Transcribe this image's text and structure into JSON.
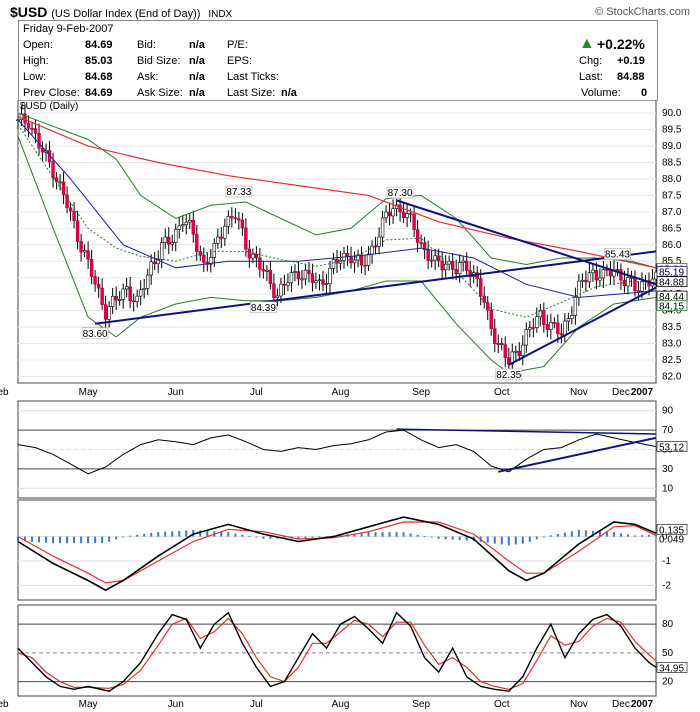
{
  "header": {
    "symbol": "$USD",
    "name": "(US Dollar Index (End of Day))",
    "exchange": "INDX",
    "watermark": "© StockCharts.com",
    "date": "Friday   9-Feb-2007",
    "open_label": "Open:",
    "open": "84.69",
    "high_label": "High:",
    "high": "85.03",
    "low_label": "Low:",
    "low": "84.68",
    "prev_label": "Prev Close:",
    "prev": "84.69",
    "bid_label": "Bid:",
    "bid": "n/a",
    "bidsize_label": "Bid Size:",
    "bidsize": "n/a",
    "ask_label": "Ask:",
    "ask": "n/a",
    "asksize_label": "Ask Size:",
    "asksize": "n/a",
    "pe_label": "P/E:",
    "eps_label": "EPS:",
    "lastticks_label": "Last Ticks:",
    "lastsize_label": "Last Size:",
    "lastsize": "n/a",
    "change_arrow": "▲",
    "change_pct": "+0.22%",
    "chg_label": "Chg:",
    "chg": "+0.19",
    "last_label": "Last:",
    "last": "84.88",
    "volume_label": "Volume:",
    "volume": "0"
  },
  "chart_data": [
    {
      "type": "candlestick",
      "title": "$USD (Daily)",
      "ylim": [
        81.8,
        90.4
      ],
      "y_ticks": [
        "90.0",
        "89.5",
        "89.0",
        "88.5",
        "88.0",
        "87.5",
        "87.0",
        "86.5",
        "86.0",
        "85.5",
        "85.0",
        "84.5",
        "84.0",
        "83.5",
        "83.0",
        "82.5",
        "82.0"
      ],
      "x_labels": [
        "May",
        "Jun",
        "Jul",
        "Aug",
        "Sep",
        "Oct",
        "Nov",
        "Dec",
        "2007",
        "Feb"
      ],
      "close_path_points": [
        [
          0,
          89.7
        ],
        [
          3,
          89.8
        ],
        [
          6,
          89.0
        ],
        [
          10,
          88.3
        ],
        [
          14,
          87.2
        ],
        [
          18,
          86.0
        ],
        [
          22,
          84.8
        ],
        [
          25,
          84.0
        ],
        [
          28,
          84.3
        ],
        [
          31,
          84.7
        ],
        [
          34,
          84.2
        ],
        [
          36,
          84.8
        ],
        [
          38,
          85.4
        ],
        [
          41,
          85.9
        ],
        [
          44,
          86.2
        ],
        [
          47,
          86.8
        ],
        [
          50,
          86.3
        ],
        [
          53,
          85.4
        ],
        [
          56,
          85.8
        ],
        [
          59,
          86.7
        ],
        [
          62,
          86.9
        ],
        [
          65,
          86.0
        ],
        [
          68,
          85.5
        ],
        [
          71,
          85.0
        ],
        [
          74,
          84.5
        ],
        [
          77,
          84.9
        ],
        [
          80,
          85.2
        ],
        [
          83,
          85.0
        ],
        [
          86,
          84.8
        ],
        [
          89,
          85.2
        ],
        [
          92,
          85.6
        ],
        [
          95,
          85.7
        ],
        [
          98,
          85.3
        ],
        [
          101,
          85.9
        ],
        [
          104,
          86.6
        ],
        [
          107,
          87.2
        ],
        [
          110,
          87.0
        ],
        [
          113,
          86.5
        ],
        [
          116,
          85.8
        ],
        [
          119,
          85.4
        ],
        [
          122,
          85.5
        ],
        [
          125,
          85.2
        ],
        [
          128,
          85.4
        ],
        [
          131,
          84.9
        ],
        [
          134,
          83.8
        ],
        [
          137,
          83.0
        ],
        [
          140,
          82.4
        ],
        [
          143,
          82.9
        ],
        [
          146,
          83.4
        ],
        [
          149,
          83.9
        ],
        [
          152,
          83.5
        ],
        [
          155,
          83.3
        ],
        [
          158,
          84.1
        ],
        [
          161,
          84.9
        ],
        [
          164,
          85.2
        ],
        [
          167,
          85.0
        ],
        [
          170,
          85.3
        ],
        [
          173,
          84.9
        ],
        [
          176,
          84.7
        ],
        [
          179,
          84.9
        ],
        [
          182,
          84.9
        ]
      ],
      "price_labels": [
        {
          "text": "87.33",
          "index": 63,
          "value": 87.33
        },
        {
          "text": "87.30",
          "index": 109,
          "value": 87.3
        },
        {
          "text": "83.60",
          "index": 22,
          "value": 83.6
        },
        {
          "text": "84.39",
          "index": 70,
          "value": 84.39
        },
        {
          "text": "82.35",
          "index": 140,
          "value": 82.35
        },
        {
          "text": "85.43",
          "index": 171,
          "value": 85.43
        }
      ],
      "right_labels": [
        "85.28",
        "85.19",
        "84.88",
        "84.44",
        "84.15"
      ],
      "ma_200": [
        [
          0,
          89.9
        ],
        [
          20,
          89.0
        ],
        [
          40,
          88.5
        ],
        [
          60,
          88.1
        ],
        [
          80,
          87.8
        ],
        [
          100,
          87.5
        ],
        [
          120,
          86.7
        ],
        [
          140,
          86.2
        ],
        [
          160,
          85.8
        ],
        [
          182,
          85.3
        ]
      ],
      "ma_50": [
        [
          0,
          89.8
        ],
        [
          15,
          88.0
        ],
        [
          30,
          86.0
        ],
        [
          45,
          85.3
        ],
        [
          60,
          85.5
        ],
        [
          80,
          85.5
        ],
        [
          100,
          85.7
        ],
        [
          115,
          85.9
        ],
        [
          130,
          85.6
        ],
        [
          145,
          84.8
        ],
        [
          160,
          84.4
        ],
        [
          182,
          84.6
        ]
      ],
      "bb_upper": [
        [
          0,
          90.0
        ],
        [
          10,
          89.6
        ],
        [
          20,
          89.2
        ],
        [
          28,
          88.6
        ],
        [
          35,
          87.5
        ],
        [
          45,
          86.8
        ],
        [
          55,
          87.2
        ],
        [
          65,
          87.3
        ],
        [
          75,
          86.8
        ],
        [
          85,
          86.3
        ],
        [
          95,
          86.5
        ],
        [
          105,
          87.4
        ],
        [
          115,
          87.5
        ],
        [
          125,
          86.8
        ],
        [
          135,
          85.6
        ],
        [
          145,
          85.4
        ],
        [
          155,
          85.6
        ],
        [
          165,
          85.6
        ],
        [
          175,
          85.5
        ],
        [
          182,
          85.3
        ]
      ],
      "bb_lower": [
        [
          0,
          89.3
        ],
        [
          10,
          86.5
        ],
        [
          20,
          83.8
        ],
        [
          28,
          83.2
        ],
        [
          35,
          83.8
        ],
        [
          45,
          84.2
        ],
        [
          55,
          84.4
        ],
        [
          65,
          84.3
        ],
        [
          75,
          84.3
        ],
        [
          85,
          84.4
        ],
        [
          95,
          84.6
        ],
        [
          105,
          84.9
        ],
        [
          115,
          84.9
        ],
        [
          125,
          83.6
        ],
        [
          135,
          82.5
        ],
        [
          140,
          82.1
        ],
        [
          150,
          82.3
        ],
        [
          160,
          83.5
        ],
        [
          170,
          84.2
        ],
        [
          182,
          84.4
        ]
      ],
      "trendlines": [
        {
          "from": [
            22,
            83.6
          ],
          "to": [
            182,
            85.8
          ]
        },
        {
          "from": [
            108,
            87.35
          ],
          "to": [
            182,
            84.8
          ]
        },
        {
          "from": [
            140,
            82.35
          ],
          "to": [
            182,
            84.7
          ]
        }
      ]
    },
    {
      "type": "line",
      "indicator": "RSI",
      "ylim": [
        0,
        100
      ],
      "y_ticks": [
        "90",
        "70",
        "50",
        "30",
        "10"
      ],
      "right_label": "53.12",
      "values": [
        [
          0,
          55
        ],
        [
          5,
          52
        ],
        [
          10,
          45
        ],
        [
          15,
          35
        ],
        [
          20,
          25
        ],
        [
          25,
          32
        ],
        [
          30,
          45
        ],
        [
          35,
          55
        ],
        [
          40,
          60
        ],
        [
          45,
          58
        ],
        [
          50,
          55
        ],
        [
          55,
          62
        ],
        [
          60,
          65
        ],
        [
          65,
          58
        ],
        [
          70,
          50
        ],
        [
          75,
          48
        ],
        [
          80,
          52
        ],
        [
          85,
          50
        ],
        [
          90,
          54
        ],
        [
          95,
          56
        ],
        [
          100,
          60
        ],
        [
          105,
          68
        ],
        [
          110,
          70
        ],
        [
          115,
          60
        ],
        [
          120,
          52
        ],
        [
          125,
          55
        ],
        [
          130,
          48
        ],
        [
          135,
          33
        ],
        [
          140,
          27
        ],
        [
          145,
          40
        ],
        [
          150,
          50
        ],
        [
          155,
          52
        ],
        [
          160,
          60
        ],
        [
          165,
          66
        ],
        [
          170,
          62
        ],
        [
          175,
          58
        ],
        [
          182,
          53
        ]
      ]
    },
    {
      "type": "line",
      "indicator": "MACD",
      "ylim": [
        -2.6,
        1.5
      ],
      "y_ticks": [
        "0",
        "-1",
        "-2"
      ],
      "right_labels": [
        "0.135",
        "0.049"
      ],
      "macd": [
        [
          0,
          -0.2
        ],
        [
          10,
          -1.1
        ],
        [
          20,
          -1.8
        ],
        [
          25,
          -2.2
        ],
        [
          30,
          -1.8
        ],
        [
          40,
          -0.8
        ],
        [
          50,
          0.1
        ],
        [
          60,
          0.5
        ],
        [
          70,
          0.1
        ],
        [
          80,
          -0.2
        ],
        [
          90,
          0.0
        ],
        [
          100,
          0.4
        ],
        [
          110,
          0.8
        ],
        [
          120,
          0.5
        ],
        [
          130,
          -0.1
        ],
        [
          140,
          -1.4
        ],
        [
          145,
          -1.8
        ],
        [
          150,
          -1.5
        ],
        [
          160,
          -0.3
        ],
        [
          170,
          0.6
        ],
        [
          176,
          0.5
        ],
        [
          182,
          0.14
        ]
      ],
      "signal": [
        [
          0,
          0.0
        ],
        [
          10,
          -0.8
        ],
        [
          20,
          -1.5
        ],
        [
          25,
          -1.9
        ],
        [
          30,
          -1.8
        ],
        [
          40,
          -1.0
        ],
        [
          50,
          -0.2
        ],
        [
          60,
          0.3
        ],
        [
          70,
          0.2
        ],
        [
          80,
          -0.1
        ],
        [
          90,
          -0.05
        ],
        [
          100,
          0.2
        ],
        [
          110,
          0.6
        ],
        [
          120,
          0.6
        ],
        [
          130,
          0.1
        ],
        [
          140,
          -1.0
        ],
        [
          145,
          -1.5
        ],
        [
          150,
          -1.5
        ],
        [
          160,
          -0.6
        ],
        [
          170,
          0.4
        ],
        [
          176,
          0.45
        ],
        [
          182,
          0.05
        ]
      ]
    },
    {
      "type": "line",
      "indicator": "Stochastics",
      "ylim": [
        5,
        100
      ],
      "y_ticks": [
        "80",
        "50",
        "20"
      ],
      "right_label": "34.95",
      "fast": [
        [
          0,
          55
        ],
        [
          4,
          40
        ],
        [
          8,
          25
        ],
        [
          12,
          15
        ],
        [
          16,
          12
        ],
        [
          20,
          15
        ],
        [
          26,
          10
        ],
        [
          30,
          20
        ],
        [
          35,
          40
        ],
        [
          40,
          70
        ],
        [
          44,
          90
        ],
        [
          48,
          85
        ],
        [
          52,
          55
        ],
        [
          56,
          80
        ],
        [
          60,
          92
        ],
        [
          64,
          60
        ],
        [
          68,
          35
        ],
        [
          72,
          15
        ],
        [
          76,
          20
        ],
        [
          80,
          45
        ],
        [
          84,
          70
        ],
        [
          88,
          55
        ],
        [
          92,
          80
        ],
        [
          96,
          88
        ],
        [
          100,
          75
        ],
        [
          104,
          60
        ],
        [
          108,
          92
        ],
        [
          112,
          78
        ],
        [
          116,
          45
        ],
        [
          120,
          30
        ],
        [
          124,
          55
        ],
        [
          128,
          25
        ],
        [
          132,
          15
        ],
        [
          136,
          12
        ],
        [
          140,
          10
        ],
        [
          144,
          25
        ],
        [
          148,
          55
        ],
        [
          152,
          80
        ],
        [
          156,
          45
        ],
        [
          160,
          70
        ],
        [
          164,
          85
        ],
        [
          168,
          90
        ],
        [
          172,
          78
        ],
        [
          176,
          55
        ],
        [
          180,
          40
        ],
        [
          182,
          35
        ]
      ],
      "slow": [
        [
          0,
          50
        ],
        [
          4,
          45
        ],
        [
          8,
          30
        ],
        [
          12,
          20
        ],
        [
          16,
          14
        ],
        [
          20,
          14
        ],
        [
          26,
          13
        ],
        [
          30,
          17
        ],
        [
          35,
          32
        ],
        [
          40,
          58
        ],
        [
          44,
          80
        ],
        [
          48,
          86
        ],
        [
          52,
          65
        ],
        [
          56,
          72
        ],
        [
          60,
          86
        ],
        [
          64,
          70
        ],
        [
          68,
          45
        ],
        [
          72,
          25
        ],
        [
          76,
          20
        ],
        [
          80,
          35
        ],
        [
          84,
          60
        ],
        [
          88,
          60
        ],
        [
          92,
          72
        ],
        [
          96,
          84
        ],
        [
          100,
          80
        ],
        [
          104,
          67
        ],
        [
          108,
          82
        ],
        [
          112,
          82
        ],
        [
          116,
          58
        ],
        [
          120,
          38
        ],
        [
          124,
          45
        ],
        [
          128,
          35
        ],
        [
          132,
          20
        ],
        [
          136,
          15
        ],
        [
          140,
          12
        ],
        [
          144,
          18
        ],
        [
          148,
          42
        ],
        [
          152,
          68
        ],
        [
          156,
          58
        ],
        [
          160,
          62
        ],
        [
          164,
          78
        ],
        [
          168,
          86
        ],
        [
          172,
          82
        ],
        [
          176,
          62
        ],
        [
          180,
          48
        ],
        [
          182,
          42
        ]
      ]
    }
  ]
}
